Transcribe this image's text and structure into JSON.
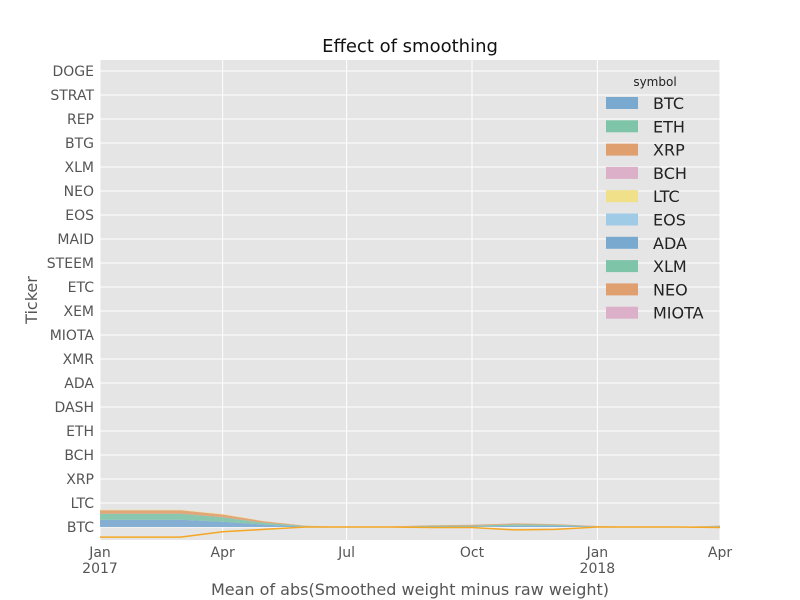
{
  "chart_data": {
    "type": "area",
    "title": "Effect of smoothing",
    "xlabel": "Mean of abs(Smoothed weight minus raw weight)",
    "ylabel": "Ticker",
    "grid": true,
    "legend": {
      "title": "symbol",
      "placement": "top-right"
    },
    "y_categories": [
      "BTC",
      "LTC",
      "XRP",
      "BCH",
      "ETH",
      "DASH",
      "ADA",
      "XMR",
      "MIOTA",
      "XEM",
      "ETC",
      "STEEM",
      "MAID",
      "EOS",
      "NEO",
      "XLM",
      "BTG",
      "REP",
      "STRAT",
      "DOGE"
    ],
    "x_ticks": [
      {
        "date": "2017-01-01",
        "label": "Jan",
        "year": "2017"
      },
      {
        "date": "2017-04-01",
        "label": "Apr",
        "year": ""
      },
      {
        "date": "2017-07-01",
        "label": "Jul",
        "year": ""
      },
      {
        "date": "2017-10-01",
        "label": "Oct",
        "year": ""
      },
      {
        "date": "2018-01-01",
        "label": "Jan",
        "year": "2018"
      },
      {
        "date": "2018-04-01",
        "label": "Apr",
        "year": ""
      }
    ],
    "x_range": [
      "2017-01-01",
      "2018-04-01"
    ],
    "x": [
      "2017-01-01",
      "2017-02-01",
      "2017-03-01",
      "2017-04-01",
      "2017-05-01",
      "2017-06-01",
      "2017-07-01",
      "2017-08-01",
      "2017-09-01",
      "2017-10-01",
      "2017-11-01",
      "2017-12-01",
      "2018-01-01",
      "2018-02-01",
      "2018-03-01",
      "2018-04-01"
    ],
    "series": [
      {
        "name": "BTC",
        "color": "#7aa9cf",
        "values": [
          0.3,
          0.3,
          0.3,
          0.22,
          0.1,
          0.02,
          0,
          0,
          0.02,
          0.02,
          0.05,
          0.05,
          0.02,
          0,
          0,
          0.02
        ]
      },
      {
        "name": "ETH",
        "color": "#7ec4a8",
        "values": [
          0.25,
          0.25,
          0.25,
          0.18,
          0.08,
          0.02,
          0,
          0.01,
          0.03,
          0.04,
          0.06,
          0.04,
          0.01,
          0,
          0,
          0.02
        ]
      },
      {
        "name": "XRP",
        "color": "#e09f6e",
        "values": [
          0.15,
          0.15,
          0.15,
          0.12,
          0.06,
          0.01,
          0,
          0.01,
          0.02,
          0.03,
          0.04,
          0.03,
          0.01,
          0,
          0,
          0.02
        ]
      },
      {
        "name": "BCH",
        "color": "#dcb0c8",
        "values": [
          0,
          0,
          0,
          0,
          0,
          0,
          0,
          0,
          0,
          0,
          0,
          0,
          0,
          0,
          0,
          0
        ]
      },
      {
        "name": "LTC",
        "color": "#f0e08a",
        "values": [
          0.02,
          0.02,
          0.02,
          0.02,
          0.01,
          0,
          0,
          0,
          0,
          0,
          0,
          0,
          0,
          0,
          0,
          0
        ]
      },
      {
        "name": "EOS",
        "color": "#9fcbe6",
        "values": [
          0,
          0,
          0,
          0,
          0,
          0,
          0,
          0,
          0,
          0,
          0,
          0,
          0,
          0,
          0,
          0
        ]
      },
      {
        "name": "ADA",
        "color": "#7aa9cf",
        "values": [
          0,
          0,
          0,
          0,
          0,
          0,
          0,
          0,
          0,
          0,
          0,
          0,
          0,
          0,
          0,
          0
        ]
      },
      {
        "name": "XLM",
        "color": "#7ec4a8",
        "values": [
          0,
          0,
          0,
          0,
          0,
          0,
          0,
          0,
          0,
          0,
          0,
          0,
          0,
          0,
          0,
          0
        ]
      },
      {
        "name": "NEO",
        "color": "#e09f6e",
        "values": [
          0,
          0,
          0,
          0,
          0,
          0,
          0,
          0,
          0,
          0,
          0,
          0,
          0,
          0,
          0,
          0
        ]
      },
      {
        "name": "MIOTA",
        "color": "#dcb0c8",
        "values": [
          0,
          0,
          0,
          0,
          0,
          0,
          0,
          0,
          0,
          0,
          0,
          0,
          0,
          0,
          0,
          0
        ]
      }
    ],
    "line_series": {
      "color": "#f5a623",
      "values": [
        -0.42,
        -0.42,
        -0.42,
        -0.2,
        -0.1,
        0,
        0,
        0,
        -0.02,
        -0.02,
        -0.12,
        -0.1,
        0,
        0,
        0,
        -0.02
      ]
    }
  }
}
